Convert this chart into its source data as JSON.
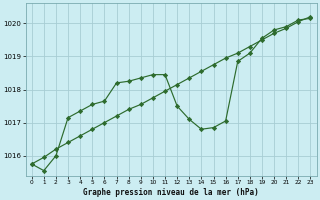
{
  "title": "Graphe pression niveau de la mer (hPa)",
  "bg_color": "#ccedf2",
  "grid_color": "#a8cdd4",
  "line_color": "#2d6b2d",
  "xlim": [
    -0.5,
    23.5
  ],
  "ylim": [
    1015.4,
    1020.6
  ],
  "yticks": [
    1016,
    1017,
    1018,
    1019,
    1020
  ],
  "xticks": [
    0,
    1,
    2,
    3,
    4,
    5,
    6,
    7,
    8,
    9,
    10,
    11,
    12,
    13,
    14,
    15,
    16,
    17,
    18,
    19,
    20,
    21,
    22,
    23
  ],
  "series1_x": [
    0,
    1,
    2,
    3,
    4,
    5,
    6,
    7,
    8,
    9,
    10,
    11,
    12,
    13,
    14,
    15,
    16,
    17,
    18,
    19,
    20,
    21,
    22,
    23
  ],
  "series1_y": [
    1015.75,
    1015.55,
    1016.0,
    1017.15,
    1017.35,
    1017.55,
    1017.65,
    1018.2,
    1018.25,
    1018.35,
    1018.45,
    1018.45,
    1017.5,
    1017.1,
    1016.8,
    1016.85,
    1017.05,
    1018.85,
    1019.1,
    1019.55,
    1019.8,
    1019.9,
    1020.1,
    1020.15
  ],
  "series2_x": [
    0,
    1,
    2,
    3,
    4,
    5,
    6,
    7,
    8,
    9,
    10,
    11,
    12,
    13,
    14,
    15,
    16,
    17,
    18,
    19,
    20,
    21,
    22,
    23
  ],
  "series2_y": [
    1015.75,
    1015.95,
    1016.2,
    1016.4,
    1016.6,
    1016.8,
    1017.0,
    1017.2,
    1017.4,
    1017.55,
    1017.75,
    1017.95,
    1018.15,
    1018.35,
    1018.55,
    1018.75,
    1018.95,
    1019.1,
    1019.3,
    1019.5,
    1019.7,
    1019.85,
    1020.05,
    1020.2
  ]
}
